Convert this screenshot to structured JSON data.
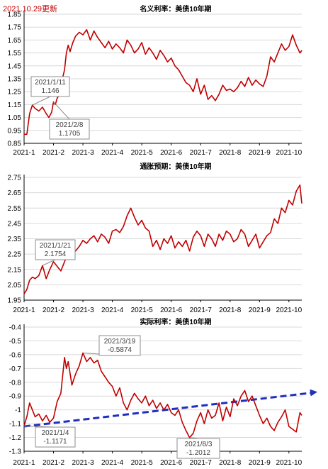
{
  "update_note": "2021.10.29更新",
  "colors": {
    "line": "#c00000",
    "trend": "#1f2fbf",
    "note": "#c00000",
    "axis": "#000000",
    "grid": "#d9d9d9"
  },
  "chart_data": [
    {
      "type": "line",
      "title": "名义利率：美债10年期",
      "x_tick_labels": [
        "2021-1",
        "2021-2",
        "2021-3",
        "2021-4",
        "2021-5",
        "2021-6",
        "2021-7",
        "2021-8",
        "2021-9",
        "2021-10"
      ],
      "y_tick_labels": [
        "0.85",
        "0.95",
        "1.05",
        "1.15",
        "1.25",
        "1.35",
        "1.45",
        "1.55",
        "1.65",
        "1.75",
        "1.85"
      ],
      "ylim": [
        0.85,
        1.85
      ],
      "grid": true,
      "series": [
        {
          "x": [
            0,
            3,
            6,
            9,
            12,
            16,
            20,
            24,
            27,
            30,
            32,
            34,
            36,
            38,
            40,
            42,
            44,
            46,
            48,
            50,
            53,
            56,
            60,
            64,
            68,
            72,
            76,
            80,
            84,
            88,
            92,
            96,
            100,
            104,
            108,
            112,
            116,
            120,
            124,
            128,
            132,
            136,
            140,
            144,
            148,
            152,
            156,
            160,
            164,
            168,
            172,
            176,
            180,
            184,
            188,
            192,
            196,
            200,
            204,
            208,
            212,
            216,
            220,
            224,
            228,
            232,
            236,
            240,
            244,
            248,
            252,
            256,
            260,
            264,
            268,
            272,
            276,
            280,
            284,
            288,
            292,
            296,
            300,
            302
          ],
          "y": [
            0.92,
            0.92,
            1.08,
            1.146,
            1.12,
            1.1,
            1.13,
            1.08,
            1.05,
            1.09,
            1.1705,
            1.15,
            1.2,
            1.22,
            1.29,
            1.36,
            1.42,
            1.55,
            1.61,
            1.56,
            1.63,
            1.68,
            1.71,
            1.69,
            1.73,
            1.65,
            1.72,
            1.67,
            1.63,
            1.59,
            1.64,
            1.58,
            1.62,
            1.59,
            1.55,
            1.65,
            1.61,
            1.55,
            1.58,
            1.63,
            1.54,
            1.59,
            1.55,
            1.5,
            1.57,
            1.53,
            1.48,
            1.51,
            1.45,
            1.42,
            1.37,
            1.32,
            1.3,
            1.25,
            1.35,
            1.23,
            1.3,
            1.19,
            1.22,
            1.18,
            1.23,
            1.3,
            1.26,
            1.27,
            1.25,
            1.28,
            1.33,
            1.29,
            1.36,
            1.3,
            1.34,
            1.31,
            1.29,
            1.37,
            1.52,
            1.48,
            1.55,
            1.62,
            1.57,
            1.6,
            1.69,
            1.61,
            1.55,
            1.57
          ]
        }
      ],
      "annotations": [
        {
          "label": "2021/1/11",
          "value": "1.146",
          "x": 9,
          "y": 1.146
        },
        {
          "label": "2021/2/8",
          "value": "1.1705",
          "x": 32,
          "y": 1.1705
        }
      ]
    },
    {
      "type": "line",
      "title": "通胀预期：美债10年期",
      "x_tick_labels": [
        "2021-1",
        "2021-2",
        "2021-3",
        "2021-4",
        "2021-5",
        "2021-6",
        "2021-7",
        "2021-8",
        "2021-9",
        "2021-10"
      ],
      "y_tick_labels": [
        "1.95",
        "2.05",
        "2.15",
        "2.25",
        "2.35",
        "2.45",
        "2.55",
        "2.65",
        "2.75"
      ],
      "ylim": [
        1.95,
        2.75
      ],
      "grid": true,
      "series": [
        {
          "x": [
            0,
            3,
            6,
            9,
            12,
            16,
            20,
            24,
            28,
            32,
            36,
            40,
            44,
            48,
            52,
            56,
            60,
            64,
            68,
            72,
            76,
            80,
            84,
            88,
            92,
            96,
            100,
            104,
            108,
            112,
            116,
            120,
            124,
            128,
            132,
            136,
            140,
            144,
            148,
            152,
            156,
            160,
            164,
            168,
            172,
            176,
            180,
            184,
            188,
            192,
            196,
            200,
            204,
            208,
            212,
            216,
            220,
            224,
            228,
            232,
            236,
            240,
            244,
            248,
            252,
            256,
            260,
            264,
            268,
            272,
            276,
            280,
            284,
            288,
            292,
            296,
            300,
            302
          ],
          "y": [
            1.99,
            2.02,
            2.08,
            2.1,
            2.09,
            2.11,
            2.1754,
            2.09,
            2.15,
            2.2,
            2.17,
            2.14,
            2.2,
            2.26,
            2.29,
            2.27,
            2.3,
            2.34,
            2.32,
            2.35,
            2.37,
            2.33,
            2.38,
            2.36,
            2.32,
            2.4,
            2.41,
            2.39,
            2.43,
            2.5,
            2.55,
            2.49,
            2.44,
            2.47,
            2.42,
            2.4,
            2.3,
            2.34,
            2.28,
            2.35,
            2.32,
            2.37,
            2.29,
            2.33,
            2.3,
            2.34,
            2.27,
            2.36,
            2.4,
            2.37,
            2.3,
            2.38,
            2.35,
            2.3,
            2.38,
            2.34,
            2.4,
            2.38,
            2.33,
            2.35,
            2.41,
            2.38,
            2.3,
            2.34,
            2.38,
            2.29,
            2.33,
            2.37,
            2.39,
            2.48,
            2.45,
            2.55,
            2.52,
            2.6,
            2.57,
            2.66,
            2.7,
            2.58
          ]
        }
      ],
      "annotations": [
        {
          "label": "2021/1/21",
          "value": "2.1754",
          "x": 20,
          "y": 2.1754
        }
      ]
    },
    {
      "type": "line",
      "title": "实际利率：美债10年期",
      "x_tick_labels": [
        "2021-1",
        "2021-2",
        "2021-3",
        "2021-4",
        "2021-5",
        "2021-6",
        "2021-7",
        "2021-8",
        "2021-9",
        "2021-10"
      ],
      "y_tick_labels": [
        "-0.4",
        "-0.5",
        "-0.6",
        "-0.7",
        "-0.8",
        "-0.9",
        "-1",
        "-1.1",
        "-1.2",
        "-1.3"
      ],
      "ylim": [
        -1.3,
        -0.4
      ],
      "grid": true,
      "series": [
        {
          "x": [
            0,
            3,
            6,
            9,
            12,
            16,
            20,
            24,
            28,
            32,
            36,
            40,
            44,
            46,
            48,
            52,
            56,
            60,
            64,
            68,
            72,
            76,
            80,
            84,
            88,
            92,
            96,
            100,
            104,
            108,
            112,
            116,
            120,
            124,
            128,
            132,
            136,
            140,
            144,
            148,
            152,
            156,
            160,
            164,
            168,
            172,
            176,
            180,
            184,
            188,
            192,
            196,
            200,
            204,
            208,
            212,
            216,
            220,
            224,
            228,
            232,
            236,
            240,
            244,
            248,
            252,
            256,
            260,
            264,
            268,
            272,
            276,
            280,
            284,
            288,
            292,
            296,
            300,
            302
          ],
          "y": [
            -1.1171,
            -1.05,
            -0.95,
            -1.0,
            -1.05,
            -1.03,
            -1.08,
            -1.04,
            -1.09,
            -1.06,
            -0.94,
            -0.88,
            -0.62,
            -0.7,
            -0.65,
            -0.82,
            -0.74,
            -0.68,
            -0.5874,
            -0.65,
            -0.62,
            -0.66,
            -0.64,
            -0.72,
            -0.76,
            -0.8,
            -0.83,
            -0.9,
            -0.84,
            -0.95,
            -1.0,
            -0.93,
            -0.88,
            -0.92,
            -0.95,
            -0.9,
            -0.97,
            -0.93,
            -0.99,
            -0.95,
            -1.0,
            -0.96,
            -1.02,
            -1.04,
            -1.0,
            -1.09,
            -1.15,
            -1.2012,
            -1.17,
            -1.08,
            -1.02,
            -1.1,
            -1.0,
            -1.06,
            -1.04,
            -0.95,
            -1.08,
            -0.98,
            -1.05,
            -0.92,
            -0.97,
            -0.9,
            -0.86,
            -0.94,
            -0.9,
            -0.97,
            -1.04,
            -1.1,
            -1.06,
            -1.12,
            -1.15,
            -1.09,
            -1.05,
            -1.0,
            -1.12,
            -1.14,
            -1.16,
            -1.02,
            -1.04
          ]
        }
      ],
      "trend": {
        "x": [
          0,
          320
        ],
        "y": [
          -1.12,
          -0.87
        ]
      },
      "annotations": [
        {
          "label": "2021/3/19",
          "value": "-0.5874",
          "x": 64,
          "y": -0.5874
        },
        {
          "label": "2021/1/4",
          "value": "-1.1171",
          "x": 0,
          "y": -1.1171
        },
        {
          "label": "2021/8/3",
          "value": "-1.2012",
          "x": 180,
          "y": -1.2012
        }
      ]
    }
  ]
}
